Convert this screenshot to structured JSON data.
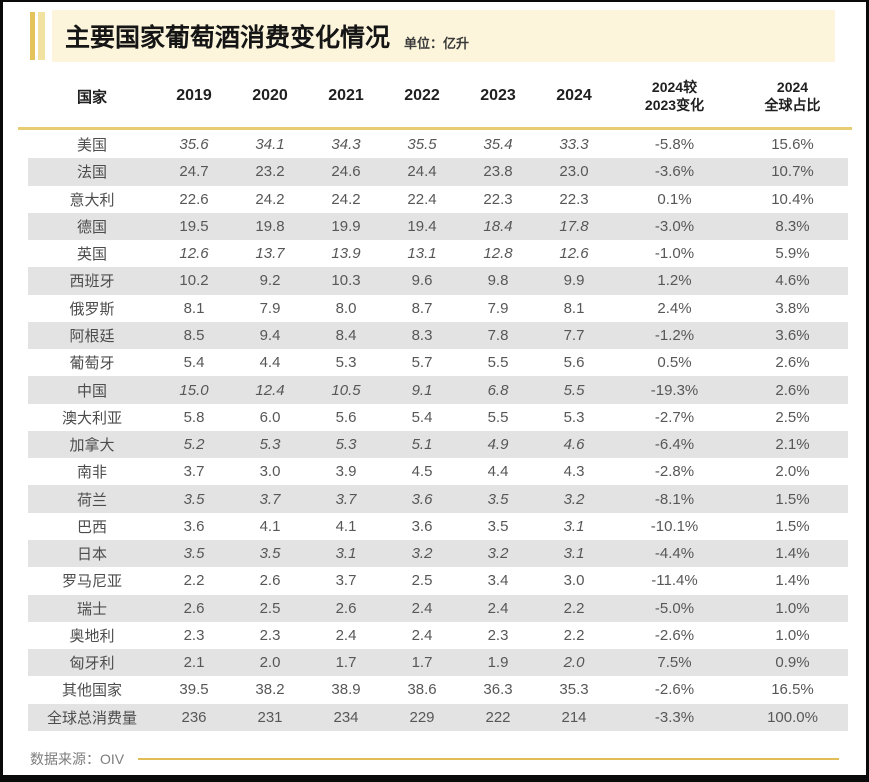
{
  "chart_data": {
    "type": "table",
    "title": "主要国家葡萄酒消费变化情况",
    "unit_label": "单位：亿升",
    "source_label": "数据来源：OIV",
    "columns": [
      "国家",
      "2019",
      "2020",
      "2021",
      "2022",
      "2023",
      "2024",
      "2024较\n2023变化",
      "2024\n全球占比"
    ],
    "rows": [
      {
        "country": "美国",
        "values": [
          "35.6",
          "34.1",
          "34.3",
          "35.5",
          "35.4",
          "33.3"
        ],
        "italics": [
          1,
          1,
          1,
          1,
          1,
          1
        ],
        "change": "-5.8%",
        "share": "15.6%"
      },
      {
        "country": "法国",
        "values": [
          "24.7",
          "23.2",
          "24.6",
          "24.4",
          "23.8",
          "23.0"
        ],
        "italics": [
          0,
          0,
          0,
          0,
          0,
          0
        ],
        "change": "-3.6%",
        "share": "10.7%"
      },
      {
        "country": "意大利",
        "values": [
          "22.6",
          "24.2",
          "24.2",
          "22.4",
          "22.3",
          "22.3"
        ],
        "italics": [
          0,
          0,
          0,
          0,
          0,
          0
        ],
        "change": "0.1%",
        "share": "10.4%"
      },
      {
        "country": "德国",
        "values": [
          "19.5",
          "19.8",
          "19.9",
          "19.4",
          "18.4",
          "17.8"
        ],
        "italics": [
          0,
          0,
          0,
          0,
          1,
          1
        ],
        "change": "-3.0%",
        "share": "8.3%"
      },
      {
        "country": "英国",
        "values": [
          "12.6",
          "13.7",
          "13.9",
          "13.1",
          "12.8",
          "12.6"
        ],
        "italics": [
          1,
          1,
          1,
          1,
          1,
          1
        ],
        "change": "-1.0%",
        "share": "5.9%"
      },
      {
        "country": "西班牙",
        "values": [
          "10.2",
          "9.2",
          "10.3",
          "9.6",
          "9.8",
          "9.9"
        ],
        "italics": [
          0,
          0,
          0,
          0,
          0,
          0
        ],
        "change": "1.2%",
        "share": "4.6%"
      },
      {
        "country": "俄罗斯",
        "values": [
          "8.1",
          "7.9",
          "8.0",
          "8.7",
          "7.9",
          "8.1"
        ],
        "italics": [
          0,
          0,
          0,
          0,
          0,
          0
        ],
        "change": "2.4%",
        "share": "3.8%"
      },
      {
        "country": "阿根廷",
        "values": [
          "8.5",
          "9.4",
          "8.4",
          "8.3",
          "7.8",
          "7.7"
        ],
        "italics": [
          0,
          0,
          0,
          0,
          0,
          0
        ],
        "change": "-1.2%",
        "share": "3.6%"
      },
      {
        "country": "葡萄牙",
        "values": [
          "5.4",
          "4.4",
          "5.3",
          "5.7",
          "5.5",
          "5.6"
        ],
        "italics": [
          0,
          0,
          0,
          0,
          0,
          0
        ],
        "change": "0.5%",
        "share": "2.6%"
      },
      {
        "country": "中国",
        "values": [
          "15.0",
          "12.4",
          "10.5",
          "9.1",
          "6.8",
          "5.5"
        ],
        "italics": [
          1,
          1,
          1,
          1,
          1,
          1
        ],
        "change": "-19.3%",
        "share": "2.6%"
      },
      {
        "country": "澳大利亚",
        "values": [
          "5.8",
          "6.0",
          "5.6",
          "5.4",
          "5.5",
          "5.3"
        ],
        "italics": [
          0,
          0,
          0,
          0,
          0,
          0
        ],
        "change": "-2.7%",
        "share": "2.5%"
      },
      {
        "country": "加拿大",
        "values": [
          "5.2",
          "5.3",
          "5.3",
          "5.1",
          "4.9",
          "4.6"
        ],
        "italics": [
          1,
          1,
          1,
          1,
          1,
          1
        ],
        "change": "-6.4%",
        "share": "2.1%"
      },
      {
        "country": "南非",
        "values": [
          "3.7",
          "3.0",
          "3.9",
          "4.5",
          "4.4",
          "4.3"
        ],
        "italics": [
          0,
          0,
          0,
          0,
          0,
          0
        ],
        "change": "-2.8%",
        "share": "2.0%"
      },
      {
        "country": "荷兰",
        "values": [
          "3.5",
          "3.7",
          "3.7",
          "3.6",
          "3.5",
          "3.2"
        ],
        "italics": [
          1,
          1,
          1,
          1,
          1,
          1
        ],
        "change": "-8.1%",
        "share": "1.5%"
      },
      {
        "country": "巴西",
        "values": [
          "3.6",
          "4.1",
          "4.1",
          "3.6",
          "3.5",
          "3.1"
        ],
        "italics": [
          0,
          0,
          0,
          0,
          0,
          1
        ],
        "change": "-10.1%",
        "share": "1.5%"
      },
      {
        "country": "日本",
        "values": [
          "3.5",
          "3.5",
          "3.1",
          "3.2",
          "3.2",
          "3.1"
        ],
        "italics": [
          1,
          1,
          1,
          1,
          1,
          1
        ],
        "change": "-4.4%",
        "share": "1.4%"
      },
      {
        "country": "罗马尼亚",
        "values": [
          "2.2",
          "2.6",
          "3.7",
          "2.5",
          "3.4",
          "3.0"
        ],
        "italics": [
          0,
          0,
          0,
          0,
          0,
          0
        ],
        "change": "-11.4%",
        "share": "1.4%"
      },
      {
        "country": "瑞士",
        "values": [
          "2.6",
          "2.5",
          "2.6",
          "2.4",
          "2.4",
          "2.2"
        ],
        "italics": [
          0,
          0,
          0,
          0,
          0,
          0
        ],
        "change": "-5.0%",
        "share": "1.0%"
      },
      {
        "country": "奥地利",
        "values": [
          "2.3",
          "2.3",
          "2.4",
          "2.4",
          "2.3",
          "2.2"
        ],
        "italics": [
          0,
          0,
          0,
          0,
          0,
          0
        ],
        "change": "-2.6%",
        "share": "1.0%"
      },
      {
        "country": "匈牙利",
        "values": [
          "2.1",
          "2.0",
          "1.7",
          "1.7",
          "1.9",
          "2.0"
        ],
        "italics": [
          0,
          0,
          0,
          0,
          0,
          1
        ],
        "change": "7.5%",
        "share": "0.9%"
      },
      {
        "country": "其他国家",
        "values": [
          "39.5",
          "38.2",
          "38.9",
          "38.6",
          "36.3",
          "35.3"
        ],
        "italics": [
          0,
          0,
          0,
          0,
          0,
          0
        ],
        "change": "-2.6%",
        "share": "16.5%"
      },
      {
        "country": "全球总消费量",
        "values": [
          "236",
          "231",
          "234",
          "229",
          "222",
          "214"
        ],
        "italics": [
          0,
          0,
          0,
          0,
          0,
          0
        ],
        "change": "-3.3%",
        "share": "100.0%"
      }
    ]
  },
  "colors": {
    "accent_gold": "#e5c35b",
    "accent_gold_light": "#f2e2a2",
    "title_band_bg": "#fcf5db",
    "header_divider_gold": "#e8cc74",
    "footer_line_gold": "#e2bc55",
    "row_stripe_gray": "#e3e3e3",
    "frame_black": "#0a0a0a"
  }
}
